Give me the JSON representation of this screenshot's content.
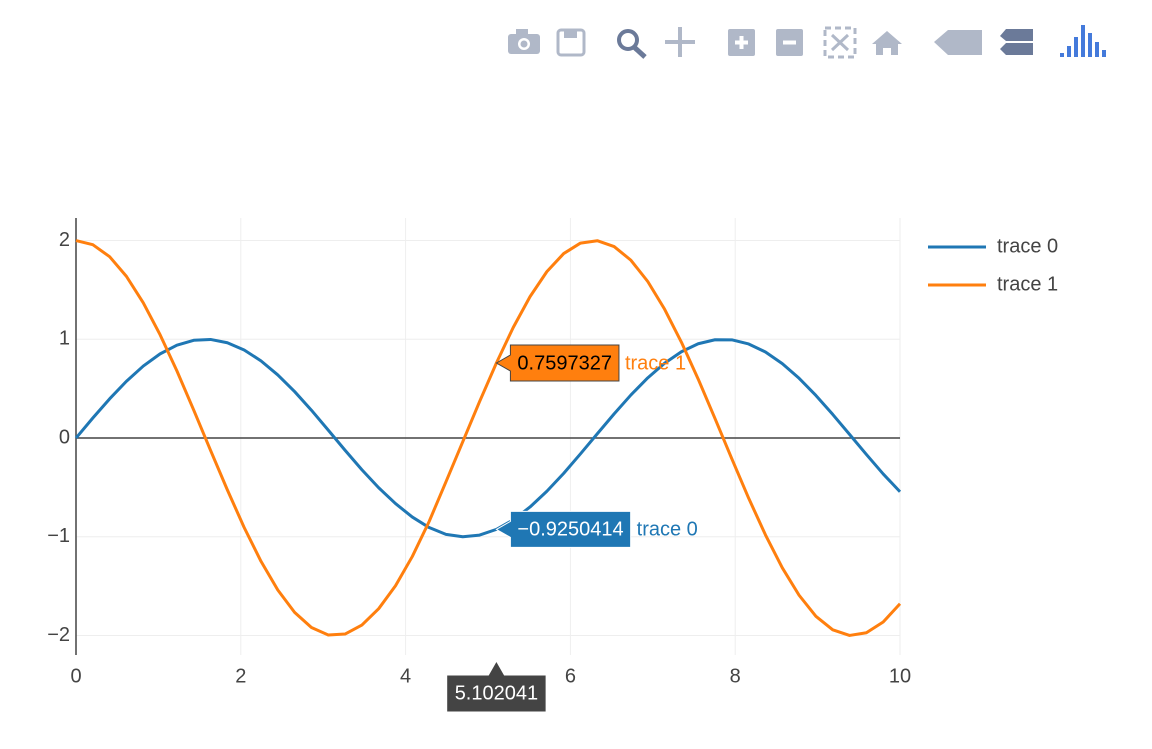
{
  "chart_data": {
    "type": "line",
    "x": [
      0,
      0.204082,
      0.408163,
      0.612245,
      0.816327,
      1.020408,
      1.22449,
      1.428571,
      1.632653,
      1.836735,
      2.040816,
      2.244898,
      2.44898,
      2.653061,
      2.857143,
      3.061224,
      3.265306,
      3.469388,
      3.673469,
      3.877551,
      4.081633,
      4.285714,
      4.489796,
      4.693878,
      4.897959,
      5.102041,
      5.306122,
      5.510204,
      5.714286,
      5.918367,
      6.122449,
      6.326531,
      6.530612,
      6.734694,
      6.938776,
      7.142857,
      7.346939,
      7.55102,
      7.755102,
      7.959184,
      8.163265,
      8.367347,
      8.571429,
      8.77551,
      8.979592,
      9.183673,
      9.387755,
      9.591837,
      9.795918,
      10
    ],
    "series": [
      {
        "name": "trace 0",
        "color": "#1f77b4",
        "values": [
          0,
          0.2027,
          0.3969,
          0.5748,
          0.7288,
          0.8523,
          0.9405,
          0.9898,
          0.9981,
          0.9649,
          0.8916,
          0.7814,
          0.6388,
          0.4706,
          0.2818,
          0.0803,
          -0.1235,
          -0.3209,
          -0.5035,
          -0.6638,
          -0.8004,
          -0.9064,
          -0.9752,
          -0.9998,
          -0.9828,
          -0.9250414,
          -0.8288,
          -0.6983,
          -0.5389,
          -0.3575,
          -0.1599,
          0.0433,
          0.2449,
          0.4363,
          0.6096,
          0.7576,
          0.8741,
          0.9545,
          0.9951,
          0.9944,
          0.9525,
          0.8715,
          0.7539,
          0.605,
          0.4311,
          0.2392,
          0.037,
          -0.1664,
          -0.3634,
          -0.544
        ],
        "value_labels": [
          null,
          null,
          null,
          null,
          null,
          null,
          null,
          null,
          null,
          null,
          null,
          null,
          null,
          null,
          null,
          null,
          null,
          null,
          null,
          null,
          null,
          null,
          null,
          null,
          null,
          "−0.9250414",
          null,
          null,
          null,
          null,
          null,
          null,
          null,
          null,
          null,
          null,
          null,
          null,
          null,
          null,
          null,
          null,
          null,
          null,
          null,
          null,
          null,
          null,
          null,
          null
        ]
      },
      {
        "name": "trace 1",
        "color": "#ff7f0e",
        "values": [
          2,
          1.958,
          1.836,
          1.637,
          1.369,
          1.046,
          0.68,
          0.283,
          -0.124,
          -0.525,
          -0.906,
          -1.248,
          -1.539,
          -1.765,
          -1.919,
          -1.994,
          -1.985,
          -1.894,
          -1.728,
          -1.496,
          -1.199,
          -0.845,
          -0.443,
          -0.037,
          0.369,
          0.7597327,
          1.119,
          1.432,
          1.685,
          1.868,
          1.974,
          1.998,
          1.939,
          1.8,
          1.585,
          1.305,
          0.971,
          0.597,
          0.197,
          -0.21,
          -0.609,
          -0.981,
          -1.314,
          -1.592,
          -1.805,
          -1.942,
          -1.999,
          -1.972,
          -1.863,
          -1.678
        ],
        "value_labels": [
          null,
          null,
          null,
          null,
          null,
          null,
          null,
          null,
          null,
          null,
          null,
          null,
          null,
          null,
          null,
          null,
          null,
          null,
          null,
          null,
          null,
          null,
          null,
          null,
          null,
          "0.7597327",
          null,
          null,
          null,
          null,
          null,
          null,
          null,
          null,
          null,
          null,
          null,
          null,
          null,
          null,
          null,
          null,
          null,
          null,
          null,
          null,
          null,
          null,
          null,
          null
        ]
      }
    ],
    "xlim": [
      0,
      10
    ],
    "xticks": [
      0,
      2,
      4,
      6,
      8,
      10
    ],
    "ylim": [
      -2.197,
      2.228
    ],
    "yticks": [
      {
        "value": -2,
        "label": "−2"
      },
      {
        "value": -1,
        "label": "−1"
      },
      0,
      1,
      2
    ],
    "grid": true,
    "legend": "right"
  }
}
